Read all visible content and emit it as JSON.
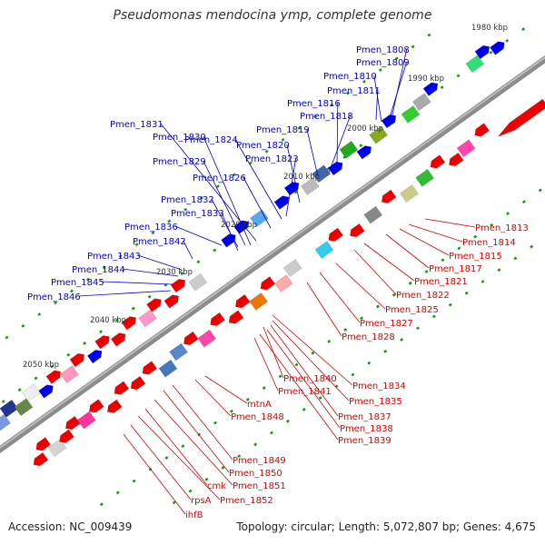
{
  "title": "Pseudomonas mendocina ymp, complete genome",
  "footer": {
    "accession": "Accession: NC_009439",
    "topology": "Topology: circular; Length: 5,072,807 bp; Genes: 4,675"
  },
  "colors": {
    "backbone": "#8a8a8a",
    "forward_label": "#0000cc",
    "reverse_label": "#dd0000",
    "tick_dot": "#119911"
  },
  "ticks": [
    {
      "label": "1980 kbp"
    },
    {
      "label": "1990 kbp"
    },
    {
      "label": "2000 kbp"
    },
    {
      "label": "2010 kbp"
    },
    {
      "label": "2020 kbp"
    },
    {
      "label": "2030 kbp"
    },
    {
      "label": "2040 kbp"
    },
    {
      "label": "2050 kbp"
    }
  ],
  "forward_genes": [
    "Pmen_1808",
    "Pmen_1809",
    "Pmen_1810",
    "Pmen_1811",
    "Pmen_1816",
    "Pmen_1818",
    "Pmen_1819",
    "Pmen_1820",
    "Pmen_1823",
    "Pmen_1824",
    "Pmen_1826",
    "Pmen_1829",
    "Pmen_1830",
    "Pmen_1831",
    "Pmen_1832",
    "Pmen_1833",
    "Pmen_1836",
    "Pmen_1842",
    "Pmen_1843",
    "Pmen_1844",
    "Pmen_1845",
    "Pmen_1846"
  ],
  "reverse_genes": [
    "Pmen_1813",
    "Pmen_1814",
    "Pmen_1815",
    "Pmen_1817",
    "Pmen_1821",
    "Pmen_1822",
    "Pmen_1825",
    "Pmen_1827",
    "Pmen_1828",
    "Pmen_1834",
    "Pmen_1835",
    "Pmen_1837",
    "Pmen_1838",
    "Pmen_1839",
    "Pmen_1840",
    "Pmen_1841",
    "mtnA",
    "Pmen_1848",
    "Pmen_1849",
    "Pmen_1850",
    "Pmen_1851",
    "cmk",
    "Pmen_1852",
    "rpsA",
    "ihfB"
  ]
}
